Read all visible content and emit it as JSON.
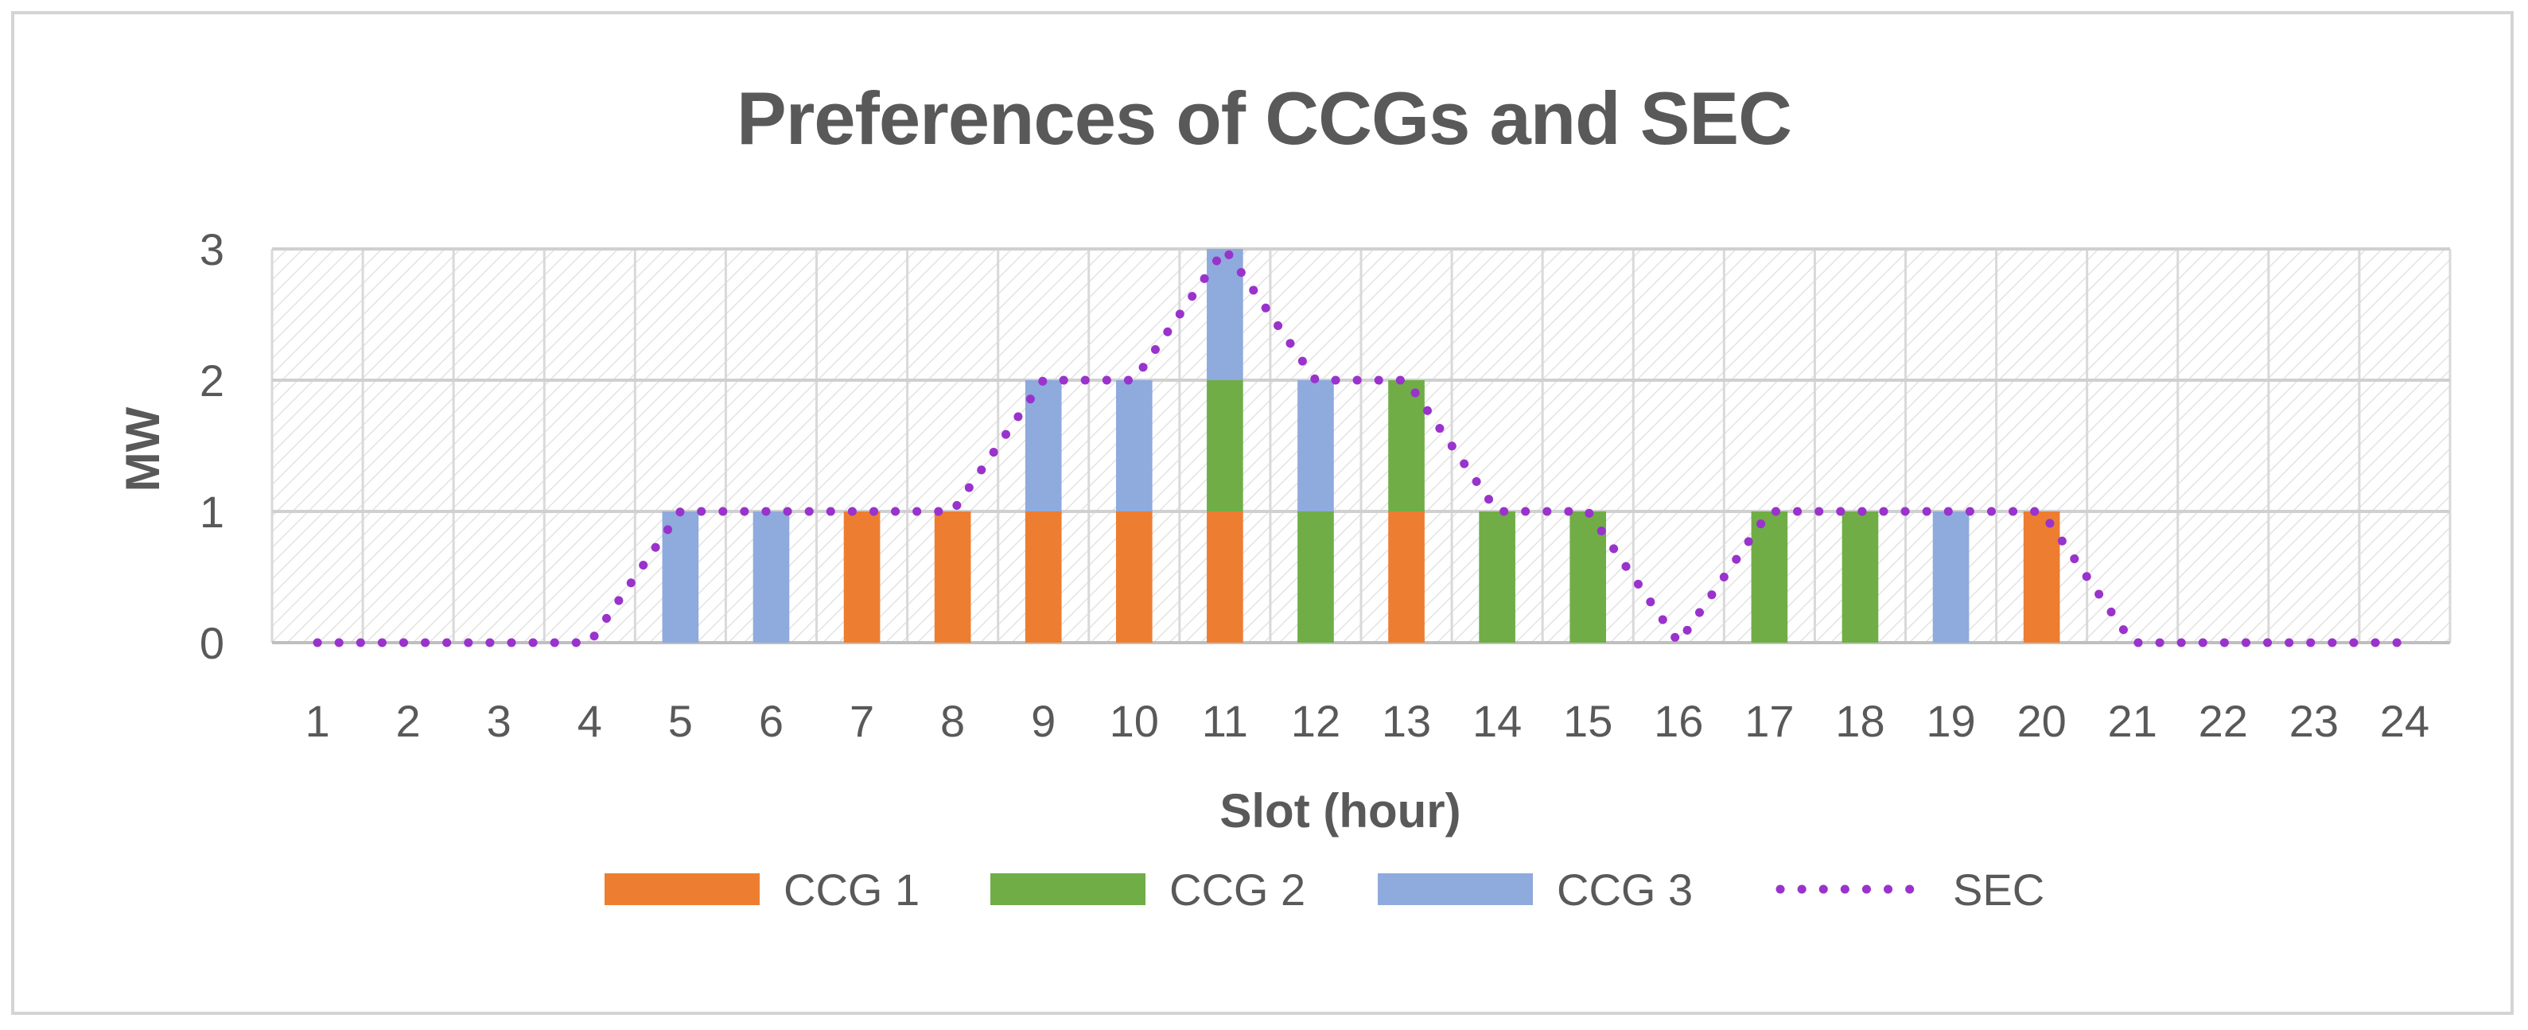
{
  "chart_data": {
    "type": "bar",
    "stacked": true,
    "title": "Preferences of CCGs and SEC",
    "xlabel": "Slot (hour)",
    "ylabel": "MW",
    "ylim": [
      0,
      3
    ],
    "yticks": [
      0,
      1,
      2,
      3
    ],
    "grid": true,
    "legend_position": "bottom",
    "categories": [
      "1",
      "2",
      "3",
      "4",
      "5",
      "6",
      "7",
      "8",
      "9",
      "10",
      "11",
      "12",
      "13",
      "14",
      "15",
      "16",
      "17",
      "18",
      "19",
      "20",
      "21",
      "22",
      "23",
      "24"
    ],
    "series": [
      {
        "name": "CCG 1",
        "kind": "bar",
        "color": "#ed7d31",
        "values": [
          0,
          0,
          0,
          0,
          0,
          0,
          1,
          1,
          1,
          1,
          1,
          0,
          1,
          0,
          0,
          0,
          0,
          0,
          0,
          1,
          0,
          0,
          0,
          0
        ]
      },
      {
        "name": "CCG 2",
        "kind": "bar",
        "color": "#70ad47",
        "values": [
          0,
          0,
          0,
          0,
          0,
          0,
          0,
          0,
          0,
          0,
          1,
          1,
          1,
          1,
          1,
          0,
          1,
          1,
          0,
          0,
          0,
          0,
          0,
          0
        ]
      },
      {
        "name": "CCG 3",
        "kind": "bar",
        "color": "#8faadc",
        "values": [
          0,
          0,
          0,
          0,
          1,
          1,
          0,
          0,
          1,
          1,
          1,
          1,
          0,
          0,
          0,
          0,
          0,
          0,
          1,
          0,
          0,
          0,
          0,
          0
        ]
      },
      {
        "name": "SEC",
        "kind": "line",
        "style": "dotted",
        "color": "#9933cc",
        "values": [
          0,
          0,
          0,
          0,
          1,
          1,
          1,
          1,
          2,
          2,
          3,
          2,
          2,
          1,
          1,
          0,
          1,
          1,
          1,
          1,
          0,
          0,
          0,
          0
        ]
      }
    ]
  }
}
